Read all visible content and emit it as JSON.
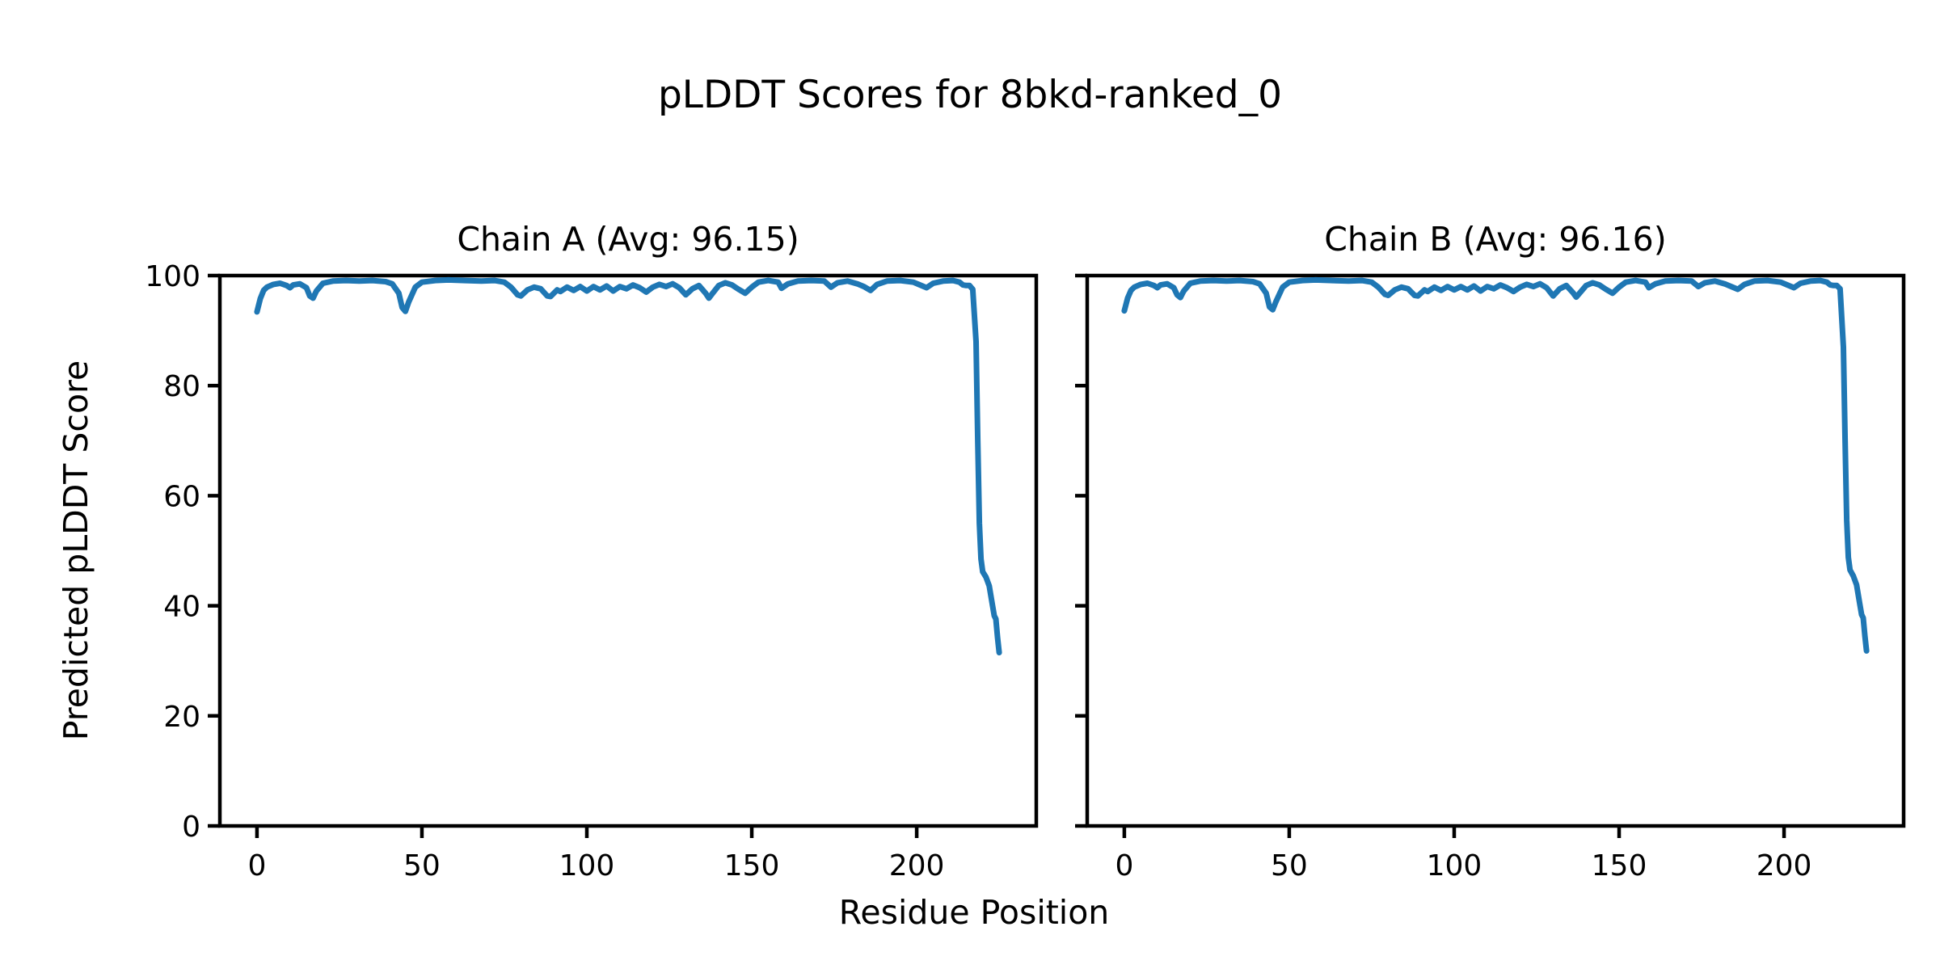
{
  "figure": {
    "title": "pLDDT Scores for 8bkd-ranked_0",
    "xlabel": "Residue Position",
    "ylabel": "Predicted pLDDT Score",
    "background_color": "#ffffff",
    "text_color": "#000000"
  },
  "chart_data": [
    {
      "type": "line",
      "chain": "A",
      "title": "Chain A (Avg: 96.15)",
      "avg_plddt": 96.15,
      "xlim": [
        -11.25,
        236.25
      ],
      "ylim": [
        0,
        100
      ],
      "xticks": [
        0,
        50,
        100,
        150,
        200
      ],
      "yticks": [
        0,
        20,
        40,
        60,
        80,
        100
      ],
      "show_y_tick_labels": true,
      "grid": false,
      "legend": "none",
      "line_color": "#1f77b4",
      "series": [
        {
          "name": "pLDDT",
          "points": [
            [
              0,
              93.4
            ],
            [
              1,
              95.8
            ],
            [
              2,
              97.3
            ],
            [
              3,
              97.9
            ],
            [
              5,
              98.4
            ],
            [
              7,
              98.6
            ],
            [
              9,
              98.2
            ],
            [
              10,
              97.8
            ],
            [
              11,
              98.3
            ],
            [
              13,
              98.5
            ],
            [
              15,
              97.8
            ],
            [
              16,
              96.3
            ],
            [
              17,
              95.9
            ],
            [
              18,
              97.2
            ],
            [
              20,
              98.6
            ],
            [
              23,
              99
            ],
            [
              27,
              99.1
            ],
            [
              31,
              99
            ],
            [
              35,
              99.1
            ],
            [
              39,
              98.9
            ],
            [
              41,
              98.5
            ],
            [
              43,
              96.8
            ],
            [
              44,
              94.2
            ],
            [
              45,
              93.5
            ],
            [
              46,
              95.2
            ],
            [
              48,
              97.9
            ],
            [
              50,
              98.8
            ],
            [
              54,
              99.1
            ],
            [
              58,
              99.2
            ],
            [
              63,
              99.1
            ],
            [
              68,
              99
            ],
            [
              72,
              99.1
            ],
            [
              75,
              98.8
            ],
            [
              77,
              97.9
            ],
            [
              79,
              96.5
            ],
            [
              80,
              96.3
            ],
            [
              82,
              97.4
            ],
            [
              84,
              97.9
            ],
            [
              86,
              97.6
            ],
            [
              88,
              96.3
            ],
            [
              89,
              96.2
            ],
            [
              91,
              97.4
            ],
            [
              92,
              97.1
            ],
            [
              94,
              97.9
            ],
            [
              96,
              97.3
            ],
            [
              98,
              98
            ],
            [
              100,
              97.2
            ],
            [
              102,
              98
            ],
            [
              104,
              97.4
            ],
            [
              106,
              98.1
            ],
            [
              108,
              97.2
            ],
            [
              110,
              98
            ],
            [
              112,
              97.6
            ],
            [
              114,
              98.3
            ],
            [
              116,
              97.8
            ],
            [
              118,
              97
            ],
            [
              120,
              97.9
            ],
            [
              122,
              98.4
            ],
            [
              124,
              98
            ],
            [
              126,
              98.5
            ],
            [
              128,
              97.8
            ],
            [
              130,
              96.5
            ],
            [
              132,
              97.6
            ],
            [
              134,
              98.2
            ],
            [
              136,
              96.8
            ],
            [
              137,
              95.9
            ],
            [
              138,
              96.7
            ],
            [
              140,
              98.2
            ],
            [
              142,
              98.7
            ],
            [
              144,
              98.3
            ],
            [
              146,
              97.5
            ],
            [
              148,
              96.8
            ],
            [
              150,
              97.9
            ],
            [
              152,
              98.8
            ],
            [
              155,
              99.1
            ],
            [
              158,
              98.8
            ],
            [
              159,
              97.7
            ],
            [
              161,
              98.5
            ],
            [
              164,
              99
            ],
            [
              168,
              99.1
            ],
            [
              172,
              99
            ],
            [
              174,
              97.9
            ],
            [
              176,
              98.7
            ],
            [
              179,
              99
            ],
            [
              182,
              98.5
            ],
            [
              184,
              98
            ],
            [
              186,
              97.3
            ],
            [
              188,
              98.4
            ],
            [
              191,
              99
            ],
            [
              195,
              99.1
            ],
            [
              199,
              98.8
            ],
            [
              201,
              98.3
            ],
            [
              203,
              97.8
            ],
            [
              205,
              98.6
            ],
            [
              208,
              99
            ],
            [
              211,
              99.1
            ],
            [
              213,
              98.8
            ],
            [
              214,
              98.3
            ],
            [
              215,
              98.2
            ],
            [
              216,
              98.2
            ],
            [
              217,
              97.5
            ],
            [
              218,
              88
            ],
            [
              218.5,
              70
            ],
            [
              219,
              55
            ],
            [
              219.5,
              48.5
            ],
            [
              220,
              46.2
            ],
            [
              221,
              45.2
            ],
            [
              222,
              43.6
            ],
            [
              223,
              40
            ],
            [
              223.5,
              38.2
            ],
            [
              224,
              37.6
            ],
            [
              224.5,
              34.2
            ],
            [
              225,
              31.5
            ]
          ]
        }
      ]
    },
    {
      "type": "line",
      "chain": "B",
      "title": "Chain B (Avg: 96.16)",
      "avg_plddt": 96.16,
      "xlim": [
        -11.25,
        236.25
      ],
      "ylim": [
        0,
        100
      ],
      "xticks": [
        0,
        50,
        100,
        150,
        200
      ],
      "yticks": [
        0,
        20,
        40,
        60,
        80,
        100
      ],
      "show_y_tick_labels": false,
      "grid": false,
      "legend": "none",
      "line_color": "#1f77b4",
      "series": [
        {
          "name": "pLDDT",
          "points": [
            [
              0,
              93.6
            ],
            [
              1,
              95.9
            ],
            [
              2,
              97.3
            ],
            [
              3,
              97.9
            ],
            [
              5,
              98.4
            ],
            [
              7,
              98.6
            ],
            [
              9,
              98.2
            ],
            [
              10,
              97.8
            ],
            [
              11,
              98.3
            ],
            [
              13,
              98.5
            ],
            [
              15,
              97.8
            ],
            [
              16,
              96.5
            ],
            [
              17,
              96
            ],
            [
              18,
              97.2
            ],
            [
              20,
              98.6
            ],
            [
              23,
              99
            ],
            [
              27,
              99.1
            ],
            [
              31,
              99
            ],
            [
              35,
              99.1
            ],
            [
              39,
              98.9
            ],
            [
              41,
              98.5
            ],
            [
              43,
              96.8
            ],
            [
              44,
              94.3
            ],
            [
              45,
              93.8
            ],
            [
              46,
              95.3
            ],
            [
              48,
              97.9
            ],
            [
              50,
              98.8
            ],
            [
              54,
              99.1
            ],
            [
              58,
              99.2
            ],
            [
              63,
              99.1
            ],
            [
              68,
              99
            ],
            [
              72,
              99.1
            ],
            [
              75,
              98.8
            ],
            [
              77,
              97.9
            ],
            [
              79,
              96.6
            ],
            [
              80,
              96.4
            ],
            [
              82,
              97.4
            ],
            [
              84,
              97.9
            ],
            [
              86,
              97.6
            ],
            [
              88,
              96.4
            ],
            [
              89,
              96.3
            ],
            [
              91,
              97.4
            ],
            [
              92,
              97.1
            ],
            [
              94,
              97.9
            ],
            [
              96,
              97.3
            ],
            [
              98,
              98
            ],
            [
              100,
              97.4
            ],
            [
              102,
              98
            ],
            [
              104,
              97.4
            ],
            [
              106,
              98.1
            ],
            [
              108,
              97.2
            ],
            [
              110,
              98
            ],
            [
              112,
              97.6
            ],
            [
              114,
              98.3
            ],
            [
              116,
              97.8
            ],
            [
              118,
              97.1
            ],
            [
              120,
              97.9
            ],
            [
              122,
              98.4
            ],
            [
              124,
              98
            ],
            [
              126,
              98.5
            ],
            [
              128,
              97.8
            ],
            [
              130,
              96.3
            ],
            [
              132,
              97.6
            ],
            [
              134,
              98.2
            ],
            [
              136,
              96.9
            ],
            [
              137,
              96.1
            ],
            [
              138,
              96.8
            ],
            [
              140,
              98.2
            ],
            [
              142,
              98.7
            ],
            [
              144,
              98.3
            ],
            [
              146,
              97.5
            ],
            [
              148,
              96.8
            ],
            [
              150,
              97.9
            ],
            [
              152,
              98.8
            ],
            [
              155,
              99.1
            ],
            [
              158,
              98.8
            ],
            [
              159,
              97.8
            ],
            [
              161,
              98.5
            ],
            [
              164,
              99
            ],
            [
              168,
              99.1
            ],
            [
              172,
              99
            ],
            [
              174,
              98
            ],
            [
              176,
              98.7
            ],
            [
              179,
              99
            ],
            [
              182,
              98.5
            ],
            [
              184,
              98
            ],
            [
              186,
              97.5
            ],
            [
              188,
              98.4
            ],
            [
              191,
              99
            ],
            [
              195,
              99.1
            ],
            [
              199,
              98.8
            ],
            [
              201,
              98.3
            ],
            [
              203,
              97.8
            ],
            [
              205,
              98.6
            ],
            [
              208,
              99
            ],
            [
              211,
              99.1
            ],
            [
              213,
              98.8
            ],
            [
              214,
              98.3
            ],
            [
              215,
              98.2
            ],
            [
              216,
              98.2
            ],
            [
              217,
              97.6
            ],
            [
              218,
              87
            ],
            [
              218.5,
              70
            ],
            [
              219,
              55.5
            ],
            [
              219.5,
              48.8
            ],
            [
              220,
              46.5
            ],
            [
              221,
              45.4
            ],
            [
              222,
              43.8
            ],
            [
              223,
              40.2
            ],
            [
              223.5,
              38.4
            ],
            [
              224,
              37.8
            ],
            [
              224.5,
              34.5
            ],
            [
              225,
              31.8
            ]
          ]
        }
      ]
    }
  ]
}
